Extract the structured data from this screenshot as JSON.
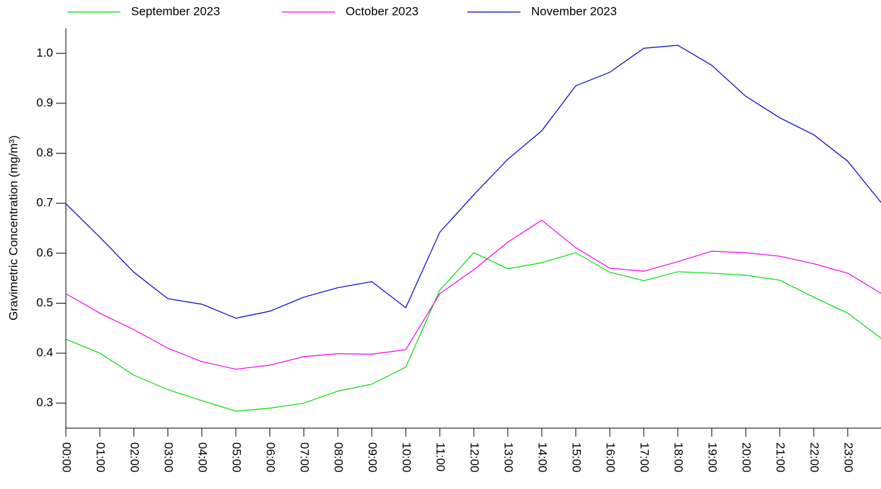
{
  "chart_data": {
    "type": "line",
    "ylabel": "Gravimetric Concentration (mg/m³)",
    "categories": [
      "00:00",
      "01:00",
      "02:00",
      "03:00",
      "04:00",
      "05:00",
      "06:00",
      "07:00",
      "08:00",
      "09:00",
      "10:00",
      "11:00",
      "12:00",
      "13:00",
      "14:00",
      "15:00",
      "16:00",
      "17:00",
      "18:00",
      "19:00",
      "20:00",
      "21:00",
      "22:00",
      "23:00",
      null
    ],
    "series": [
      {
        "name": "September 2023",
        "color": "#00dd00",
        "values": [
          0.428,
          0.4,
          0.356,
          0.327,
          0.305,
          0.284,
          0.29,
          0.3,
          0.324,
          0.338,
          0.372,
          0.526,
          0.601,
          0.569,
          0.581,
          0.601,
          0.562,
          0.545,
          0.563,
          0.56,
          0.556,
          0.546,
          0.512,
          0.48,
          0.429
        ]
      },
      {
        "name": "October 2023",
        "color": "#ee00ee",
        "values": [
          0.519,
          0.48,
          0.447,
          0.41,
          0.383,
          0.368,
          0.376,
          0.393,
          0.399,
          0.398,
          0.407,
          0.519,
          0.567,
          0.622,
          0.666,
          0.611,
          0.57,
          0.564,
          0.583,
          0.604,
          0.601,
          0.594,
          0.579,
          0.56,
          0.519
        ]
      },
      {
        "name": "November 2023",
        "color": "#0000cc",
        "values": [
          0.699,
          0.632,
          0.562,
          0.509,
          0.498,
          0.47,
          0.484,
          0.512,
          0.531,
          0.543,
          0.491,
          0.642,
          0.717,
          0.788,
          0.845,
          0.935,
          0.962,
          1.01,
          1.016,
          0.976,
          0.914,
          0.871,
          0.837,
          0.784,
          0.7
        ]
      }
    ],
    "ylim": [
      0.25,
      1.05
    ],
    "yticks": [
      0.3,
      0.4,
      0.5,
      0.6,
      0.7,
      0.8,
      0.9,
      {
        "value": 1.0,
        "label": "1.0"
      }
    ],
    "legend": "top",
    "grid": false
  }
}
